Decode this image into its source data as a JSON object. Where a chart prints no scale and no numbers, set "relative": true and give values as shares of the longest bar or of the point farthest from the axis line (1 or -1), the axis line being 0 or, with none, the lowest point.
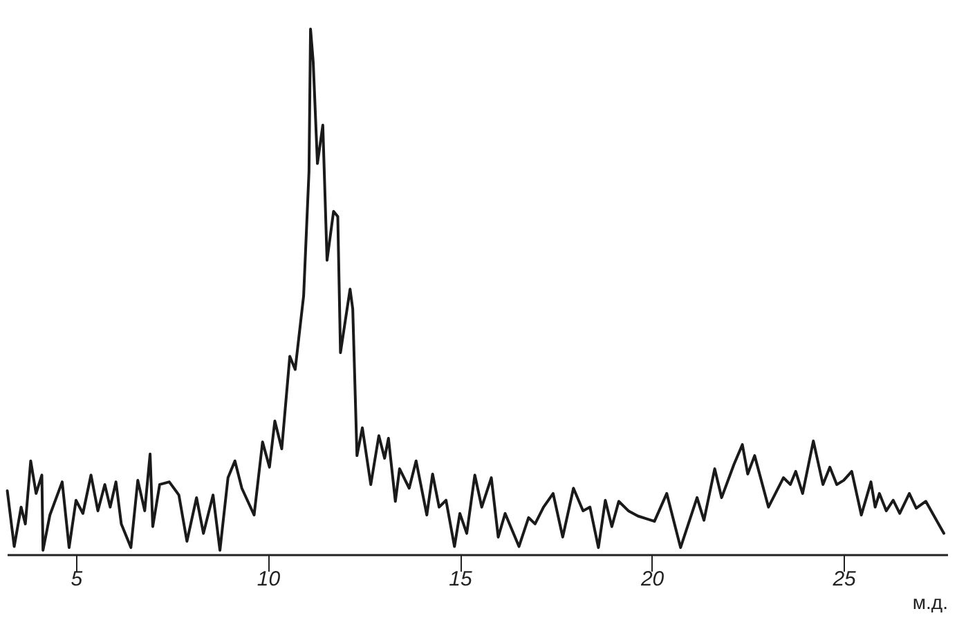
{
  "chart_data": {
    "type": "line",
    "xlabel": "м.д.",
    "relative": true,
    "xlim": [
      3.2,
      27.7
    ],
    "xticks": [
      5,
      10,
      15,
      20,
      25
    ],
    "grid": false,
    "marker": "none",
    "line_style": "solid",
    "x": [
      3.21,
      3.39,
      3.57,
      3.68,
      3.82,
      3.96,
      4.11,
      4.14,
      4.32,
      4.64,
      4.82,
      5.0,
      5.18,
      5.39,
      5.57,
      5.75,
      5.89,
      6.04,
      6.18,
      6.43,
      6.61,
      6.79,
      6.93,
      7.0,
      7.18,
      7.43,
      7.68,
      7.89,
      8.14,
      8.32,
      8.57,
      8.75,
      8.96,
      9.14,
      9.32,
      9.64,
      9.86,
      10.04,
      10.18,
      10.36,
      10.57,
      10.71,
      10.93,
      11.07,
      11.11,
      11.18,
      11.29,
      11.43,
      11.54,
      11.71,
      11.82,
      11.89,
      12.14,
      12.21,
      12.32,
      12.46,
      12.68,
      12.89,
      13.04,
      13.14,
      13.32,
      13.43,
      13.68,
      13.86,
      14.14,
      14.29,
      14.46,
      14.64,
      14.86,
      15.0,
      15.18,
      15.39,
      15.57,
      15.82,
      16.0,
      16.18,
      16.54,
      16.79,
      16.96,
      17.18,
      17.43,
      17.68,
      17.96,
      18.21,
      18.39,
      18.61,
      18.79,
      18.96,
      19.14,
      19.39,
      19.64,
      19.86,
      20.07,
      20.39,
      20.75,
      21.18,
      21.36,
      21.64,
      21.82,
      22.14,
      22.36,
      22.5,
      22.68,
      23.04,
      23.43,
      23.61,
      23.75,
      23.93,
      24.21,
      24.46,
      24.64,
      24.82,
      25.0,
      25.21,
      25.46,
      25.71,
      25.82,
      25.93,
      26.11,
      26.29,
      26.46,
      26.71,
      26.89,
      27.14,
      27.61
    ],
    "series": [
      {
        "color": "#1a1a1a",
        "values": [
          0.121,
          0.015,
          0.09,
          0.058,
          0.178,
          0.116,
          0.151,
          0.008,
          0.075,
          0.138,
          0.013,
          0.103,
          0.078,
          0.151,
          0.083,
          0.133,
          0.09,
          0.138,
          0.058,
          0.013,
          0.141,
          0.083,
          0.191,
          0.053,
          0.133,
          0.138,
          0.113,
          0.025,
          0.108,
          0.04,
          0.113,
          0.008,
          0.146,
          0.178,
          0.126,
          0.075,
          0.214,
          0.166,
          0.254,
          0.201,
          0.377,
          0.352,
          0.492,
          0.729,
          1,
          0.937,
          0.744,
          0.817,
          0.56,
          0.653,
          0.643,
          0.384,
          0.505,
          0.467,
          0.188,
          0.241,
          0.133,
          0.226,
          0.183,
          0.221,
          0.101,
          0.163,
          0.126,
          0.178,
          0.075,
          0.153,
          0.09,
          0.103,
          0.015,
          0.078,
          0.04,
          0.151,
          0.09,
          0.146,
          0.033,
          0.078,
          0.015,
          0.07,
          0.058,
          0.09,
          0.116,
          0.033,
          0.126,
          0.083,
          0.09,
          0.013,
          0.103,
          0.053,
          0.101,
          0.083,
          0.073,
          0.068,
          0.063,
          0.116,
          0.013,
          0.108,
          0.065,
          0.163,
          0.108,
          0.171,
          0.209,
          0.153,
          0.188,
          0.09,
          0.146,
          0.133,
          0.158,
          0.116,
          0.216,
          0.133,
          0.166,
          0.133,
          0.141,
          0.158,
          0.075,
          0.138,
          0.09,
          0.116,
          0.083,
          0.103,
          0.078,
          0.116,
          0.088,
          0.101,
          0.04
        ]
      }
    ]
  }
}
